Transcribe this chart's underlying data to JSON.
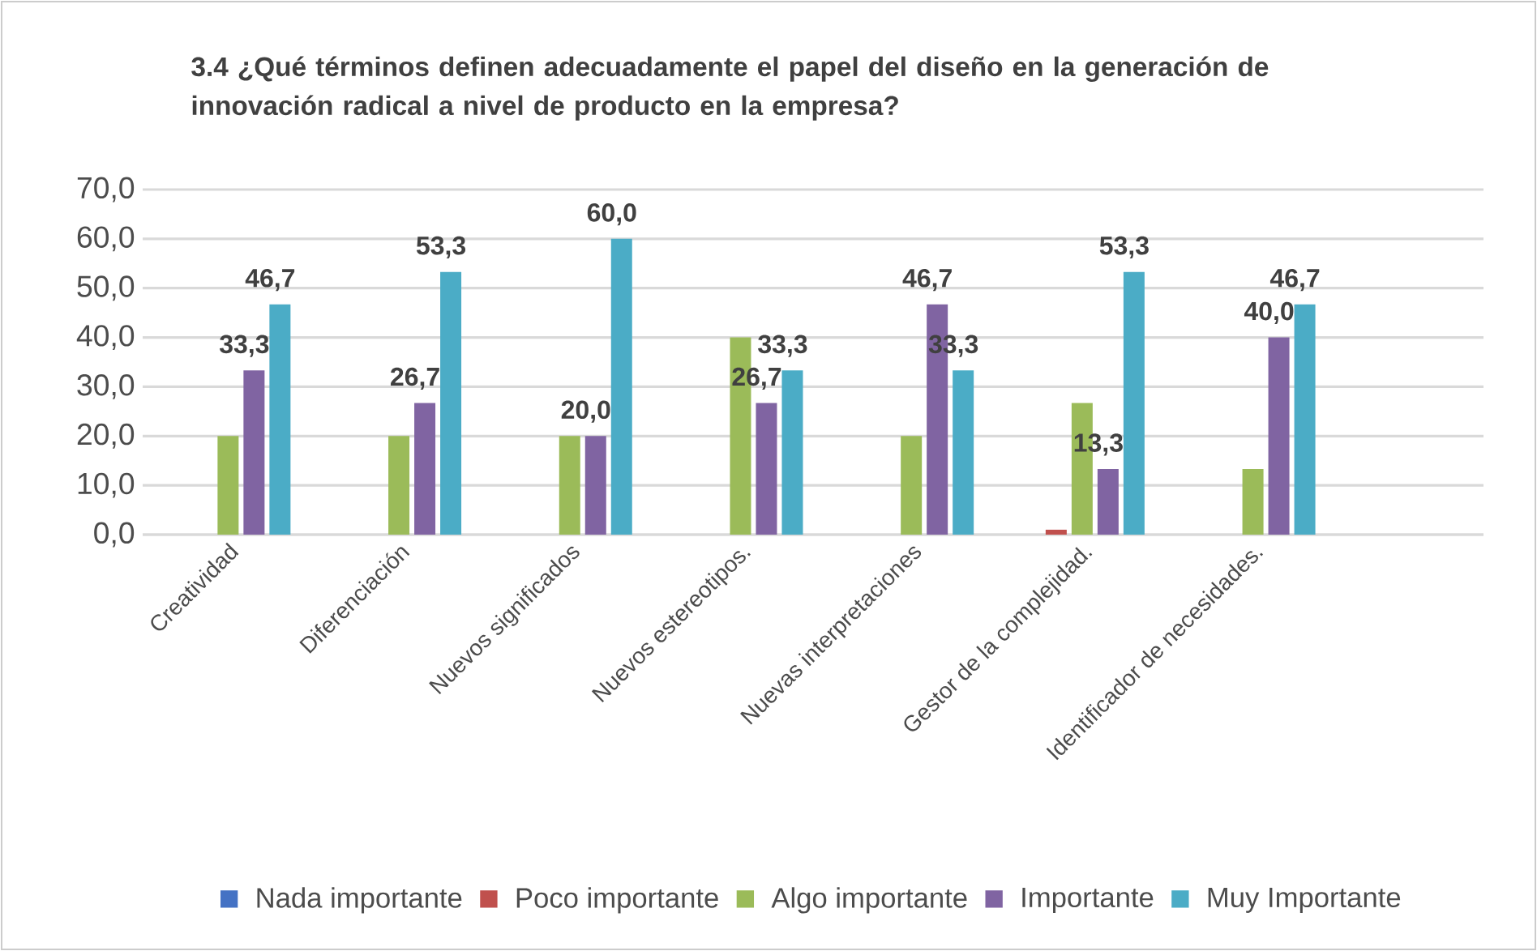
{
  "chart_data": {
    "type": "bar",
    "title": "3.4 ¿Qué términos definen adecuadamente el papel del diseño en la generación de innovación radical a nivel de producto en la empresa?",
    "categories": [
      "Creatividad",
      "Diferenciación",
      "Nuevos significados",
      "Nuevos estereotipos.",
      "Nuevas interpretaciones",
      "Gestor de la complejidad.",
      "Identificador de  necesidades."
    ],
    "series": [
      {
        "name": "Nada importante",
        "color": "#4472c4",
        "values": [
          0,
          0,
          0,
          0,
          0,
          0,
          0
        ]
      },
      {
        "name": "Poco importante",
        "color": "#c0504d",
        "values": [
          0,
          0,
          0,
          0,
          0,
          1,
          0
        ]
      },
      {
        "name": "Algo importante",
        "color": "#9bbb59",
        "values": [
          20,
          20,
          20,
          40,
          20,
          26.7,
          13.3
        ]
      },
      {
        "name": "Importante",
        "color": "#8064a2",
        "values": [
          33.3,
          26.7,
          20,
          26.7,
          46.7,
          13.3,
          40
        ],
        "value_labels": [
          "33,3",
          "26,7",
          "20,0",
          "26,7",
          "46,7",
          "13,3",
          "40,0"
        ]
      },
      {
        "name": "Muy Importante",
        "color": "#4bacc6",
        "values": [
          46.7,
          53.3,
          60,
          33.3,
          33.3,
          53.3,
          46.7
        ],
        "value_labels": [
          "46,7",
          "53,3",
          "60,0",
          "33,3",
          "33,3",
          "53,3",
          "46,7"
        ]
      }
    ],
    "ylim": [
      0,
      70
    ],
    "yticks": [
      {
        "value": 0,
        "label": "0,0"
      },
      {
        "value": 10,
        "label": "10,0"
      },
      {
        "value": 20,
        "label": "20,0"
      },
      {
        "value": 30,
        "label": "30,0"
      },
      {
        "value": 40,
        "label": "40,0"
      },
      {
        "value": 50,
        "label": "50,0"
      },
      {
        "value": 60,
        "label": "60,0"
      },
      {
        "value": 70,
        "label": "70,0"
      }
    ],
    "grid": "y",
    "legend": "bottom"
  }
}
